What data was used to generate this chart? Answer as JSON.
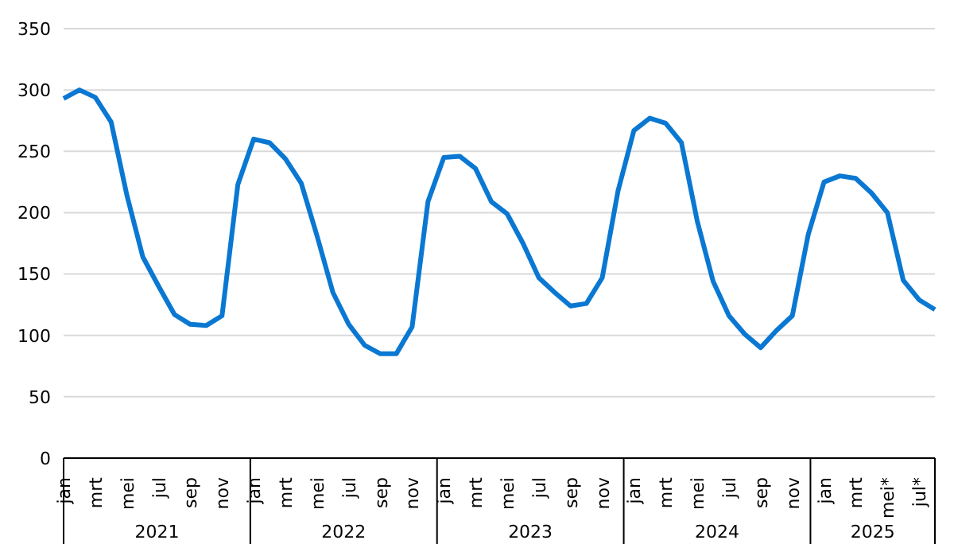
{
  "chart_data": {
    "type": "line",
    "categories": [
      "jan",
      null,
      "mrt",
      null,
      "mei",
      null,
      "jul",
      null,
      "sep",
      null,
      "nov",
      null,
      "jan",
      null,
      "mrt",
      null,
      "mei",
      null,
      "jul",
      null,
      "sep",
      null,
      "nov",
      null,
      "jan",
      null,
      "mrt",
      null,
      "mei",
      null,
      "jul",
      null,
      "sep",
      null,
      "nov",
      null,
      "jan",
      null,
      "mrt",
      null,
      "mei",
      null,
      "jul",
      null,
      "sep",
      null,
      "nov",
      null,
      "jan",
      null,
      "mrt",
      null,
      "mei*",
      null,
      "jul*",
      null
    ],
    "series": [
      {
        "color": "#0a78d2",
        "values": [
          293,
          300,
          294,
          274,
          214,
          164,
          140,
          117,
          109,
          108,
          116,
          223,
          260,
          257,
          244,
          224,
          181,
          135,
          109,
          92,
          85,
          85,
          107,
          209,
          245,
          246,
          236,
          209,
          199,
          175,
          147,
          135,
          124,
          126,
          147,
          218,
          267,
          277,
          273,
          257,
          193,
          144,
          116,
          101,
          90,
          104,
          116,
          182,
          225,
          230,
          228,
          216,
          200,
          145,
          129,
          121
        ]
      }
    ],
    "annotations": [
      "2021",
      "2022",
      "2023",
      "2024",
      "2025"
    ],
    "ylim": [
      0,
      350
    ],
    "yticks": [
      0,
      50,
      100,
      150,
      200,
      250,
      300,
      350
    ],
    "grid": "y",
    "legend": false,
    "marker": "none",
    "line_style": "solid"
  }
}
